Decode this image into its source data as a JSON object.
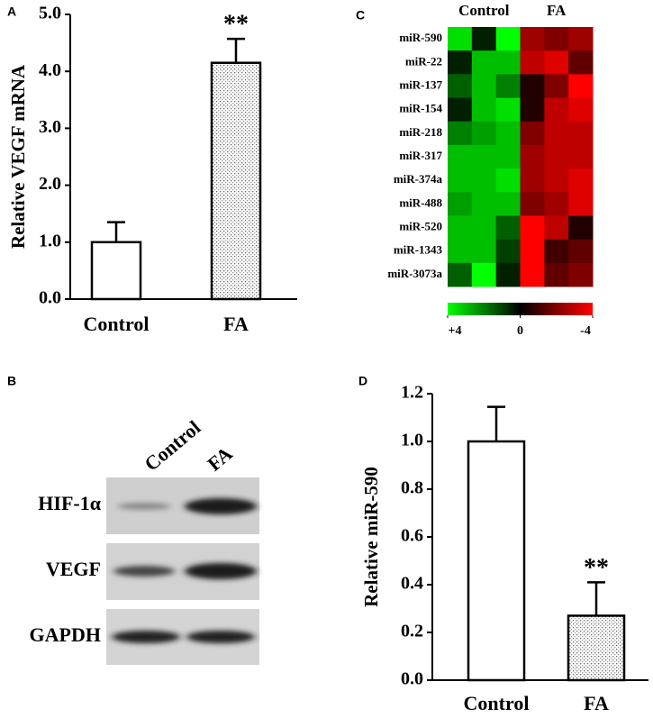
{
  "chart_data": [
    {
      "type": "bar",
      "panel": "A",
      "ylabel": "Relative VEGF mRNA",
      "categories": [
        "Control",
        "FA"
      ],
      "values": [
        1.0,
        4.15
      ],
      "errors": [
        0.35,
        0.42
      ],
      "bar_styles": [
        "plain",
        "dotted"
      ],
      "significance": [
        null,
        "**"
      ],
      "ylim": [
        0,
        5
      ],
      "yticks": [
        {
          "value": 0,
          "label": "0.0"
        },
        {
          "value": 1,
          "label": "1.0"
        },
        {
          "value": 2,
          "label": "2.0"
        },
        {
          "value": 3,
          "label": "3.0"
        },
        {
          "value": 4,
          "label": "4.0"
        },
        {
          "value": 5,
          "label": "5.0"
        }
      ]
    },
    {
      "type": "heatmap",
      "panel": "C",
      "groups": [
        "Control",
        "FA"
      ],
      "rows": [
        "miR-590",
        "miR-22",
        "miR-137",
        "miR-154",
        "miR-218",
        "miR-317",
        "miR-374a",
        "miR-488",
        "miR-520",
        "miR-1343",
        "miR-3073a"
      ],
      "values": [
        [
          3.5,
          0.5,
          4,
          -2.5,
          -2,
          -2.5
        ],
        [
          0.5,
          3,
          3,
          -3,
          -3.5,
          -1.5
        ],
        [
          1.5,
          3,
          2,
          -0.5,
          -2,
          -4
        ],
        [
          0.5,
          3,
          3.5,
          -0.5,
          -3,
          -3.5
        ],
        [
          2,
          2.5,
          3,
          -2,
          -3,
          -3
        ],
        [
          3,
          3,
          3,
          -2.5,
          -3,
          -3
        ],
        [
          3,
          3,
          3.5,
          -2.5,
          -3,
          -3.5
        ],
        [
          2.5,
          3,
          3,
          -2,
          -2.5,
          -3.5
        ],
        [
          3,
          3,
          1.5,
          -4,
          -3,
          -0.5
        ],
        [
          3,
          3,
          1,
          -4,
          -1,
          -1.5
        ],
        [
          1.5,
          4,
          0.5,
          -4,
          -1.5,
          -2
        ]
      ],
      "colors": [
        "#00ff00",
        "#000000",
        "#ff0000"
      ],
      "clim": [
        4,
        -4
      ],
      "cticks": [
        {
          "value": 4,
          "label": "+4"
        },
        0,
        -4
      ]
    },
    {
      "type": "bar",
      "panel": "D",
      "ylabel": "Relative miR-590",
      "categories": [
        "Control",
        "FA"
      ],
      "values": [
        1.0,
        0.27
      ],
      "errors": [
        0.145,
        0.14
      ],
      "bar_styles": [
        "plain",
        "dotted"
      ],
      "significance": [
        null,
        "**"
      ],
      "ylim": [
        0,
        1.2
      ],
      "yticks": [
        {
          "value": 0,
          "label": "0.0"
        },
        {
          "value": 0.2,
          "label": "0.2"
        },
        {
          "value": 0.4,
          "label": "0.4"
        },
        {
          "value": 0.6,
          "label": "0.6"
        },
        {
          "value": 0.8,
          "label": "0.8"
        },
        {
          "value": 1.0,
          "label": "1.0"
        },
        {
          "value": 1.2,
          "label": "1.2"
        }
      ]
    }
  ],
  "blot": {
    "panel": "B",
    "lanes": [
      "Control",
      "FA"
    ],
    "proteins": [
      "HIF-1α",
      "VEGF",
      "GAPDH"
    ]
  }
}
